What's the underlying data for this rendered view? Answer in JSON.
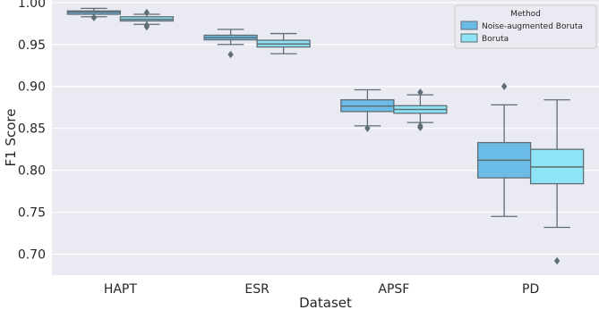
{
  "chart_data": {
    "type": "boxplot",
    "xlabel": "Dataset",
    "ylabel": "F1 Score",
    "categories": [
      "HAPT",
      "ESR",
      "APSF",
      "PD"
    ],
    "ylim": [
      0.675,
      1.003
    ],
    "yticks": [
      0.7,
      0.75,
      0.8,
      0.85,
      0.9,
      0.95,
      1.0
    ],
    "ytick_labels": [
      "0.70",
      "0.75",
      "0.80",
      "0.85",
      "0.90",
      "0.95",
      "1.00"
    ],
    "grid": true,
    "legend": {
      "title": "Method",
      "position": "top-right",
      "entries": [
        "Noise-augmented Boruta",
        "Boruta"
      ]
    },
    "colors": {
      "background": "#eaeaf2",
      "grid": "#ffffff",
      "box_line": "#5f6d75",
      "series_fills": [
        "#6cbce8",
        "#8ee3f5"
      ]
    },
    "series": [
      {
        "name": "Noise-augmented Boruta",
        "boxes": [
          {
            "category": "HAPT",
            "whisker_low": 0.983,
            "q1": 0.986,
            "median": 0.9885,
            "q3": 0.99,
            "whisker_high": 0.993,
            "outliers": [
              0.982
            ]
          },
          {
            "category": "ESR",
            "whisker_low": 0.95,
            "q1": 0.9555,
            "median": 0.958,
            "q3": 0.961,
            "whisker_high": 0.968,
            "outliers": [
              0.938
            ]
          },
          {
            "category": "APSF",
            "whisker_low": 0.853,
            "q1": 0.87,
            "median": 0.8765,
            "q3": 0.884,
            "whisker_high": 0.896,
            "outliers": [
              0.85
            ]
          },
          {
            "category": "PD",
            "whisker_low": 0.745,
            "q1": 0.791,
            "median": 0.812,
            "q3": 0.833,
            "whisker_high": 0.878,
            "outliers": [
              0.9
            ]
          }
        ]
      },
      {
        "name": "Boruta",
        "boxes": [
          {
            "category": "HAPT",
            "whisker_low": 0.974,
            "q1": 0.978,
            "median": 0.98,
            "q3": 0.983,
            "whisker_high": 0.986,
            "outliers": [
              0.971,
              0.973,
              0.988
            ]
          },
          {
            "category": "ESR",
            "whisker_low": 0.939,
            "q1": 0.947,
            "median": 0.9505,
            "q3": 0.955,
            "whisker_high": 0.963,
            "outliers": []
          },
          {
            "category": "APSF",
            "whisker_low": 0.857,
            "q1": 0.868,
            "median": 0.8725,
            "q3": 0.877,
            "whisker_high": 0.89,
            "outliers": [
              0.851,
              0.853,
              0.893
            ]
          },
          {
            "category": "PD",
            "whisker_low": 0.732,
            "q1": 0.784,
            "median": 0.804,
            "q3": 0.825,
            "whisker_high": 0.884,
            "outliers": [
              0.692
            ]
          }
        ]
      }
    ]
  }
}
